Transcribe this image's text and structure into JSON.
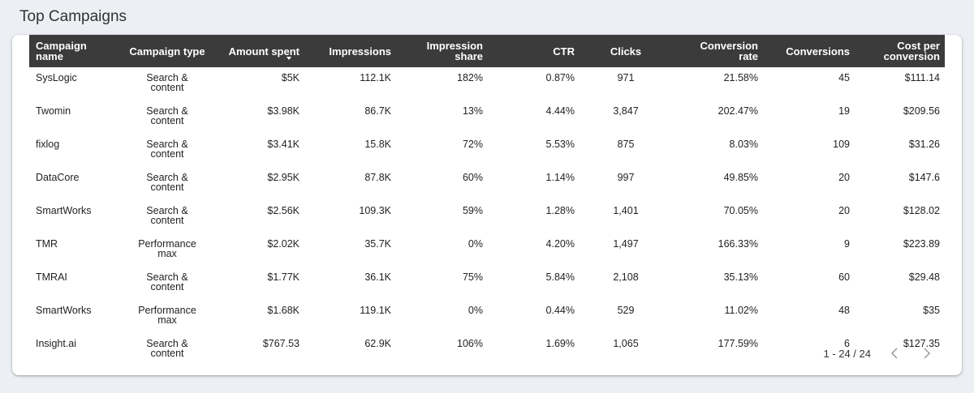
{
  "header": {
    "title": "Top Campaigns"
  },
  "table": {
    "columns": [
      "Campaign name",
      "Campaign type",
      "Amount spent",
      "Impressions",
      "Impression share",
      "CTR",
      "Clicks",
      "Conversion rate",
      "Conversions",
      "Cost per conversion"
    ],
    "rows": [
      [
        "SysLogic",
        "Search & content",
        "$5K",
        "112.1K",
        "182%",
        "0.87%",
        "971",
        "21.58%",
        "45",
        "$111.14"
      ],
      [
        "Twomin",
        "Search & content",
        "$3.98K",
        "86.7K",
        "13%",
        "4.44%",
        "3,847",
        "202.47%",
        "19",
        "$209.56"
      ],
      [
        "fixlog",
        "Search & content",
        "$3.41K",
        "15.8K",
        "72%",
        "5.53%",
        "875",
        "8.03%",
        "109",
        "$31.26"
      ],
      [
        "DataCore",
        "Search & content",
        "$2.95K",
        "87.8K",
        "60%",
        "1.14%",
        "997",
        "49.85%",
        "20",
        "$147.6"
      ],
      [
        "SmartWorks",
        "Search & content",
        "$2.56K",
        "109.3K",
        "59%",
        "1.28%",
        "1,401",
        "70.05%",
        "20",
        "$128.02"
      ],
      [
        "TMR",
        "Performance max",
        "$2.02K",
        "35.7K",
        "0%",
        "4.20%",
        "1,497",
        "166.33%",
        "9",
        "$223.89"
      ],
      [
        "TMRAI",
        "Search & content",
        "$1.77K",
        "36.1K",
        "75%",
        "5.84%",
        "2,108",
        "35.13%",
        "60",
        "$29.48"
      ],
      [
        "SmartWorks",
        "Performance max",
        "$1.68K",
        "119.1K",
        "0%",
        "0.44%",
        "529",
        "11.02%",
        "48",
        "$35"
      ],
      [
        "Insight.ai",
        "Search & content",
        "$767.53",
        "62.9K",
        "106%",
        "1.69%",
        "1,065",
        "177.59%",
        "6",
        "$127.35"
      ]
    ],
    "sorted_column": 2
  },
  "pagination": {
    "range": "1 - 24 / 24"
  }
}
